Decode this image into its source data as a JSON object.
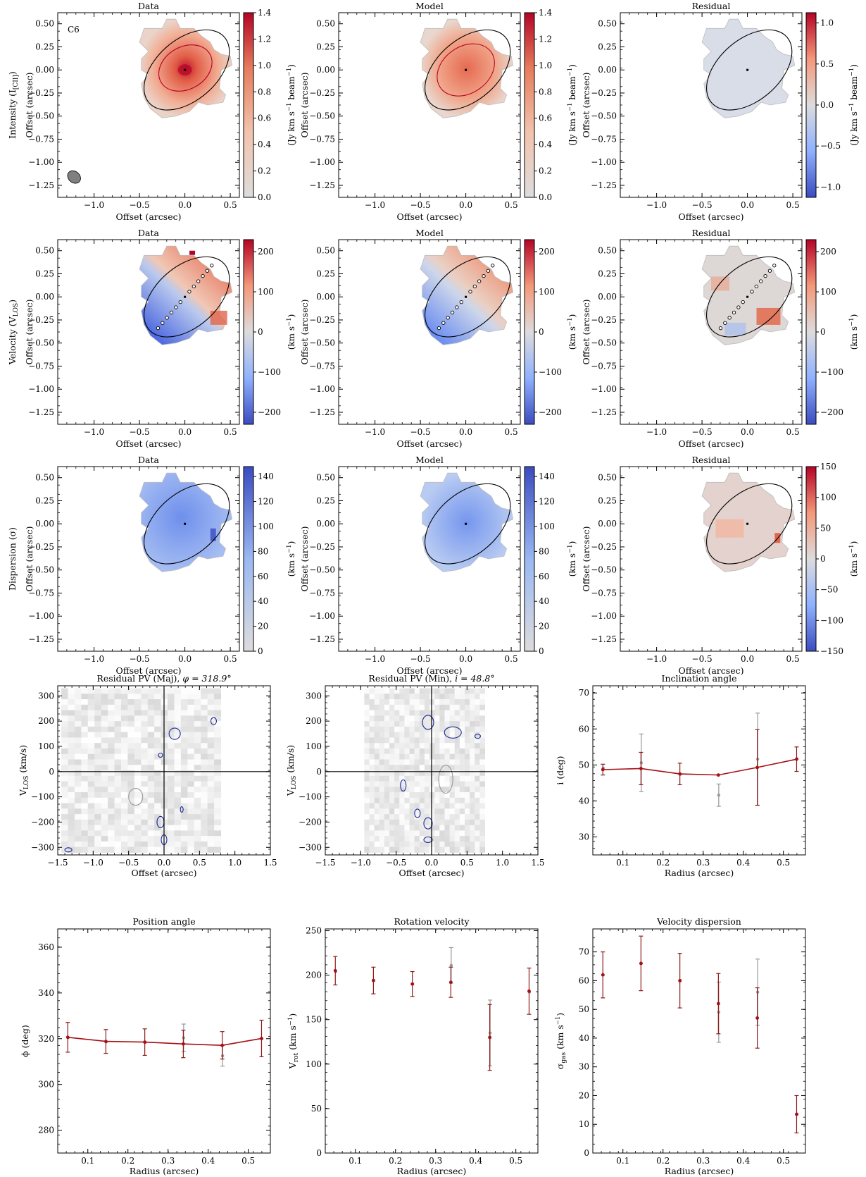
{
  "rows": [
    {
      "row_label_1": "Intensity (I",
      "row_label_1_sub": "[CII]",
      "row_label_1_end": ")",
      "row_label_2": "Offset (arcsec)",
      "panel_titles": [
        "Data",
        "Model",
        "Residual"
      ],
      "xlabel": "Offset (arcsec)",
      "ylabel": "Offset (arcsec)",
      "tag": "C6",
      "colorbar_labels": [
        {
          "pre": "(Jy km s",
          "sup1": "−1",
          "mid": " beam",
          "sup2": "−1",
          "post": ")"
        },
        {
          "pre": "(Jy km s",
          "sup1": "−1",
          "mid": " beam",
          "sup2": "−1",
          "post": ")"
        },
        {
          "pre": "(Jy km s",
          "sup1": "−1",
          "mid": " beam",
          "sup2": "−1",
          "post": ")"
        }
      ],
      "colorbar_ticks": [
        [
          "0.0",
          "0.2",
          "0.4",
          "0.6",
          "0.8",
          "1.0",
          "1.2",
          "1.4"
        ],
        [
          "0.0",
          "0.2",
          "0.4",
          "0.6",
          "0.8",
          "1.0",
          "1.2",
          "1.4"
        ],
        [
          "−1.0",
          "−0.5",
          "0.0",
          "0.5",
          "1.0"
        ]
      ]
    },
    {
      "row_label_1": "Velocity (V",
      "row_label_1_sub": "LOS",
      "row_label_1_end": ")",
      "row_label_2": "Offset (arcsec)",
      "panel_titles": [
        "Data",
        "Model",
        "Residual"
      ],
      "xlabel": "Offset (arcsec)",
      "ylabel": "Offset (arcsec)",
      "colorbar_labels": [
        {
          "pre": "(km s",
          "sup1": "−1",
          "post": ")"
        },
        {
          "pre": "(km s",
          "sup1": "−1",
          "post": ")"
        },
        {
          "pre": "(km s",
          "sup1": "−1",
          "post": ")"
        }
      ],
      "colorbar_ticks": [
        [
          "−200",
          "−100",
          "0",
          "100",
          "200"
        ],
        [
          "−200",
          "−100",
          "0",
          "100",
          "200"
        ],
        [
          "−200",
          "−100",
          "0",
          "100",
          "200"
        ]
      ]
    },
    {
      "row_label_1": "Dispersion (σ)",
      "row_label_2": "Offset (arcsec)",
      "panel_titles": [
        "Data",
        "Model",
        "Residual"
      ],
      "xlabel": "Offset (arcsec)",
      "ylabel": "Offset (arcsec)",
      "colorbar_labels": [
        {
          "pre": "(km s",
          "sup1": "−1",
          "post": ")"
        },
        {
          "pre": "(km s",
          "sup1": "−1",
          "post": ")"
        },
        {
          "pre": "(km s",
          "sup1": "−1",
          "post": ")"
        }
      ],
      "colorbar_ticks": [
        [
          "0",
          "20",
          "40",
          "60",
          "80",
          "100",
          "120",
          "140"
        ],
        [
          "0",
          "20",
          "40",
          "60",
          "80",
          "100",
          "120",
          "140"
        ],
        [
          "−150",
          "−100",
          "−50",
          "0",
          "50",
          "100",
          "150"
        ]
      ]
    }
  ],
  "map_axes": {
    "x_ticks": [
      "−1.0",
      "−0.5",
      "0.0",
      "0.5"
    ],
    "y_ticks": [
      "0.50",
      "0.25",
      "0.00",
      "−0.25",
      "−0.50",
      "−0.75",
      "−1.00",
      "−1.25"
    ]
  },
  "colors": {
    "map_red": "#b40426",
    "map_blue": "#3b4cc0",
    "map_neutral": "#dddcdc",
    "fit_line": "#a50f15",
    "fit_error": "#8b1a1a",
    "alt_point": "#999999",
    "pv_contour": "#1a2a9a"
  },
  "chart_data": [
    {
      "type": "heatmap",
      "title": "Residual PV (Maj), ",
      "title_math": "φ = 318.9°",
      "xlabel": "Offset (arcsec)",
      "ylabel_pre": "V",
      "ylabel_sub": "LOS",
      "ylabel_post": " (km/s)",
      "xlim": [
        -1.5,
        1.5
      ],
      "ylim": [
        -330,
        340
      ],
      "x_ticks": [
        -1.5,
        -1.0,
        -0.5,
        0.0,
        0.5,
        1.0,
        1.5
      ],
      "y_ticks": [
        -300,
        -200,
        -100,
        0,
        100,
        200,
        300
      ],
      "data_x_extent": [
        -1.45,
        0.8
      ],
      "data_y_extent": [
        -320,
        330
      ]
    },
    {
      "type": "heatmap",
      "title": "Residual PV (Min), ",
      "title_math": "i = 48.8°",
      "xlabel": "Offset (arcsec)",
      "ylabel_pre": "V",
      "ylabel_sub": "LOS",
      "ylabel_post": " (km/s)",
      "xlim": [
        -1.5,
        1.5
      ],
      "ylim": [
        -330,
        340
      ],
      "x_ticks": [
        -1.5,
        -1.0,
        -0.5,
        0.0,
        0.5,
        1.0,
        1.5
      ],
      "y_ticks": [
        -300,
        -200,
        -100,
        0,
        100,
        200,
        300
      ],
      "data_x_extent": [
        -0.95,
        0.75
      ],
      "data_y_extent": [
        -320,
        330
      ]
    },
    {
      "type": "scatter",
      "title": "Inclination angle",
      "xlabel": "Radius (arcsec)",
      "ylabel": "i (deg)",
      "xlim": [
        0.025,
        0.555
      ],
      "ylim": [
        25,
        72
      ],
      "x_ticks": [
        0.1,
        0.2,
        0.3,
        0.4,
        0.5
      ],
      "y_ticks": [
        30,
        40,
        50,
        60,
        70
      ],
      "x": [
        0.05,
        0.145,
        0.242,
        0.338,
        0.435,
        0.533
      ],
      "series": [
        {
          "values": [
            48.7,
            49.0,
            47.5,
            47.2,
            49.3,
            51.6
          ],
          "err": [
            1.5,
            4.5,
            3.0,
            0,
            10.5,
            3.4
          ]
        },
        {
          "values": [
            49.1,
            50.6,
            47.4,
            41.6,
            51.6,
            51.7
          ],
          "err": [
            0,
            8.0,
            0,
            3.1,
            12.8,
            0
          ]
        }
      ]
    },
    {
      "type": "scatter",
      "title": "Position angle",
      "xlabel": "Radius (arcsec)",
      "ylabel": "ϕ (deg)",
      "xlim": [
        0.025,
        0.555
      ],
      "ylim": [
        270,
        368
      ],
      "x_ticks": [
        0.1,
        0.2,
        0.3,
        0.4,
        0.5
      ],
      "y_ticks": [
        280,
        300,
        320,
        340,
        360
      ],
      "x": [
        0.05,
        0.145,
        0.242,
        0.338,
        0.435,
        0.533
      ],
      "series": [
        {
          "values": [
            320.6,
            318.8,
            318.5,
            317.7,
            317.1,
            320.1
          ],
          "err": [
            6.5,
            5.2,
            5.8,
            6.0,
            6.0,
            8.0
          ]
        },
        {
          "values": [
            320.5,
            318.6,
            318.4,
            320.4,
            312.5,
            320.0
          ],
          "err": [
            0,
            0,
            0,
            6.0,
            4.5,
            0
          ]
        }
      ]
    },
    {
      "type": "scatter",
      "title": "Rotation velocity",
      "xlabel": "Radius (arcsec)",
      "ylabel_pre": "V",
      "ylabel_sub": "rot",
      "ylabel_post": " (km s",
      "ylabel_sup": "−1",
      "ylabel_end": ")",
      "xlim": [
        0.025,
        0.555
      ],
      "ylim": [
        0,
        252
      ],
      "x_ticks": [
        0.1,
        0.2,
        0.3,
        0.4,
        0.5
      ],
      "y_ticks": [
        0,
        50,
        100,
        150,
        200,
        250
      ],
      "x": [
        0.05,
        0.145,
        0.242,
        0.338,
        0.435,
        0.533
      ],
      "series": [
        {
          "values": [
            205,
            194,
            190,
            192,
            130,
            182
          ],
          "err": [
            16,
            15,
            14,
            17,
            37,
            26
          ]
        },
        {
          "values": [
            204,
            194,
            190,
            211,
            135,
            181
          ],
          "err": [
            0,
            0,
            0,
            20,
            37,
            0
          ]
        }
      ]
    },
    {
      "type": "scatter",
      "title": "Velocity dispersion",
      "xlabel": "Radius (arcsec)",
      "ylabel_pre": "σ",
      "ylabel_sub": "gas",
      "ylabel_post": " (km s",
      "ylabel_sup": "−1",
      "ylabel_end": ")",
      "xlim": [
        0.025,
        0.555
      ],
      "ylim": [
        0,
        78
      ],
      "x_ticks": [
        0.1,
        0.2,
        0.3,
        0.4,
        0.5
      ],
      "y_ticks": [
        0,
        10,
        20,
        30,
        40,
        50,
        60,
        70
      ],
      "x": [
        0.05,
        0.145,
        0.242,
        0.338,
        0.435,
        0.533
      ],
      "series": [
        {
          "values": [
            62,
            66,
            60,
            52,
            47,
            13.5
          ],
          "err": [
            8,
            9.5,
            9.5,
            10.5,
            10.5,
            6.5
          ]
        },
        {
          "values": [
            62,
            66,
            60,
            49,
            56,
            13.5
          ],
          "err": [
            0,
            0,
            0,
            10.5,
            11.5,
            0
          ]
        }
      ]
    }
  ]
}
